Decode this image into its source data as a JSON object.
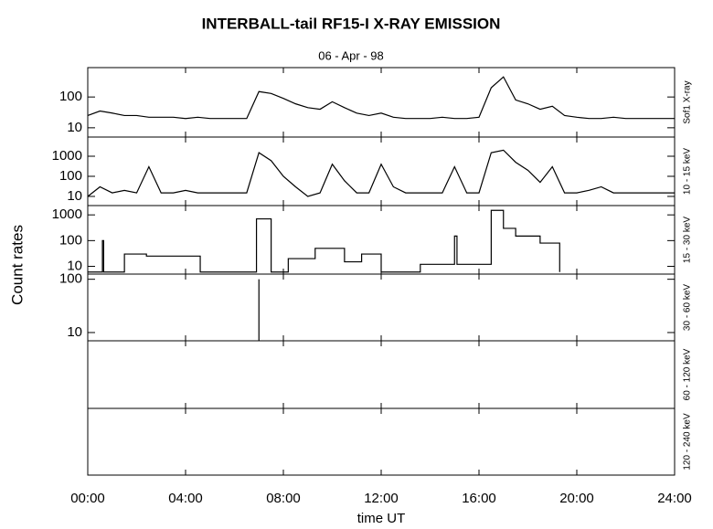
{
  "figure": {
    "title": "INTERBALL-tail  RF15-I   X-RAY  EMISSION",
    "subtitle": "06 - Apr - 98",
    "ylabel": "Count  rates",
    "xlabel": "time UT",
    "xlim": [
      0,
      24
    ],
    "xticks": [
      {
        "value": 0,
        "label": "00:00"
      },
      {
        "value": 4,
        "label": "04:00"
      },
      {
        "value": 8,
        "label": "08:00"
      },
      {
        "value": 12,
        "label": "12:00"
      },
      {
        "value": 16,
        "label": "16:00"
      },
      {
        "value": 20,
        "label": "20:00"
      },
      {
        "value": 24,
        "label": "24:00"
      }
    ]
  },
  "chart_data": [
    {
      "type": "line",
      "label": "Sof1 X-ray",
      "log": true,
      "ylim": [
        5,
        900
      ],
      "yticks": [
        10,
        100
      ],
      "color": "#000000",
      "x": [
        0,
        0.5,
        1,
        1.5,
        2,
        2.5,
        3,
        3.5,
        4,
        4.5,
        5,
        5.5,
        6,
        6.5,
        7,
        7.5,
        8,
        8.5,
        9,
        9.5,
        10,
        10.5,
        11,
        11.5,
        12,
        12.5,
        13,
        13.5,
        14,
        14.5,
        15,
        15.5,
        16,
        16.5,
        17,
        17.5,
        18,
        18.5,
        19,
        19.5,
        20,
        20.5,
        21,
        21.5,
        22,
        22.5,
        23,
        23.5,
        24
      ],
      "values": [
        25,
        35,
        30,
        25,
        25,
        22,
        22,
        22,
        20,
        22,
        20,
        20,
        20,
        20,
        150,
        130,
        90,
        60,
        45,
        40,
        70,
        45,
        30,
        25,
        30,
        22,
        20,
        20,
        20,
        22,
        20,
        20,
        22,
        200,
        450,
        80,
        60,
        40,
        50,
        25,
        22,
        20,
        20,
        22,
        20,
        20,
        20,
        20,
        20
      ]
    },
    {
      "type": "line",
      "label": "10 - 15 keV",
      "log": true,
      "ylim": [
        3.5,
        9000
      ],
      "yticks": [
        10,
        100,
        1000
      ],
      "color": "#000000",
      "x": [
        0,
        0.5,
        1,
        1.5,
        2,
        2.5,
        3,
        3.5,
        4,
        4.5,
        5,
        5.5,
        6,
        6.5,
        7,
        7.5,
        8,
        8.5,
        9,
        9.5,
        10,
        10.5,
        11,
        11.5,
        12,
        12.5,
        13,
        13.5,
        14,
        14.5,
        15,
        15.5,
        16,
        16.5,
        17,
        17.5,
        18,
        18.5,
        19,
        19.5,
        20,
        20.5,
        21,
        21.5,
        22,
        22.5,
        23,
        23.5,
        24
      ],
      "values": [
        10,
        30,
        15,
        20,
        15,
        300,
        15,
        15,
        20,
        15,
        15,
        15,
        15,
        15,
        1500,
        600,
        100,
        30,
        10,
        15,
        400,
        60,
        15,
        15,
        400,
        30,
        15,
        15,
        15,
        15,
        300,
        15,
        15,
        1500,
        2000,
        500,
        200,
        50,
        300,
        15,
        15,
        20,
        30,
        15,
        15,
        15,
        15,
        15,
        15
      ]
    },
    {
      "type": "step",
      "label": "15 - 30 keV",
      "log": true,
      "ylim": [
        5,
        2300
      ],
      "yticks": [
        10,
        100,
        1000
      ],
      "color": "#000000",
      "x": [
        0,
        0.6,
        0.65,
        1.5,
        2.4,
        4.6,
        6.9,
        7.5,
        8.2,
        9.3,
        10.5,
        11.2,
        12,
        13.6,
        15,
        15.1,
        16.5,
        17,
        17.5,
        18.5,
        19.3
      ],
      "values": [
        6,
        100,
        6,
        30,
        25,
        6,
        700,
        6,
        20,
        50,
        15,
        30,
        6,
        12,
        150,
        12,
        1500,
        300,
        150,
        80,
        6
      ]
    },
    {
      "type": "line",
      "label": "30 - 60 keV",
      "log": true,
      "ylim": [
        7,
        125
      ],
      "yticks": [
        10,
        100
      ],
      "color": "#000000",
      "x": [
        7,
        7
      ],
      "values": [
        7,
        100
      ]
    },
    {
      "type": "line",
      "label": "60 - 120 keV"
    },
    {
      "type": "line",
      "label": "120 - 240 keV"
    }
  ]
}
